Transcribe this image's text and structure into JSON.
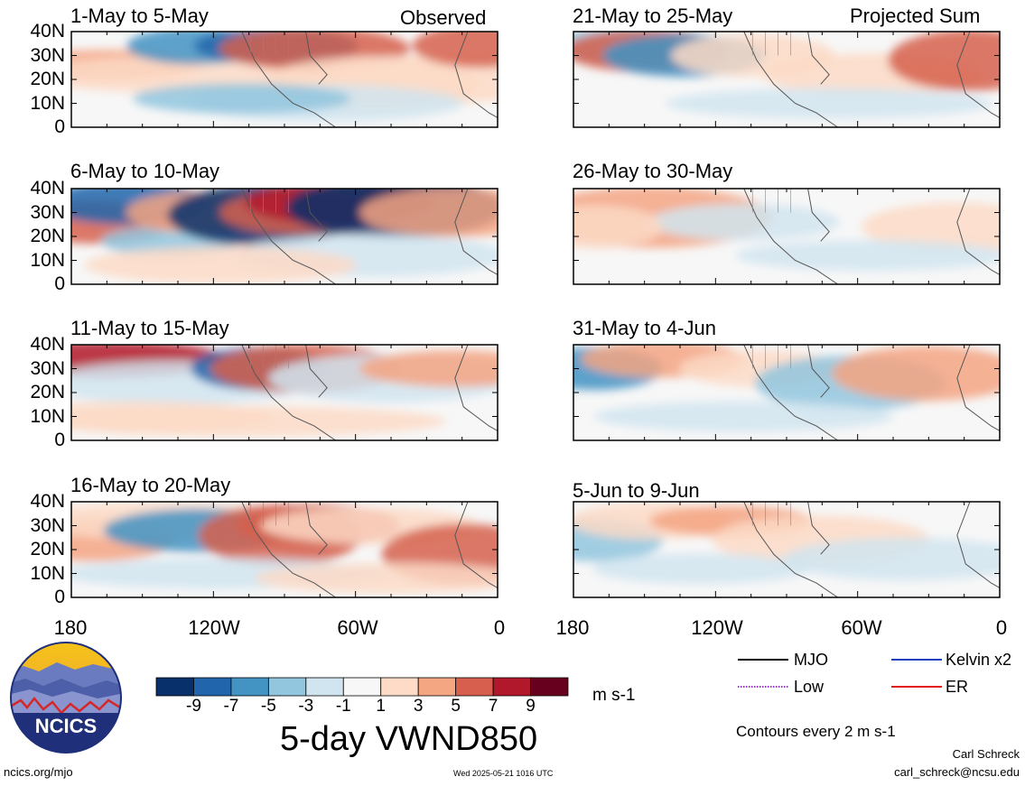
{
  "observed_label": "Observed",
  "projected_label": "Projected Sum",
  "panels_left": [
    {
      "title": "1-May to 5-May"
    },
    {
      "title": "6-May to 10-May"
    },
    {
      "title": "11-May to 15-May"
    },
    {
      "title": "16-May to 20-May"
    }
  ],
  "panels_right": [
    {
      "title": "21-May to 25-May"
    },
    {
      "title": "26-May to 30-May"
    },
    {
      "title": "31-May to 4-Jun"
    },
    {
      "title": "5-Jun to 9-Jun"
    }
  ],
  "y_ticks": [
    "40N",
    "30N",
    "20N",
    "10N",
    "0"
  ],
  "x_ticks": [
    "180",
    "120W",
    "60W",
    "0"
  ],
  "colorbar": {
    "labels": [
      "-9",
      "-7",
      "-5",
      "-3",
      "-1",
      "1",
      "3",
      "5",
      "7",
      "9"
    ],
    "colors": [
      "#08306b",
      "#2166ac",
      "#4393c3",
      "#92c5de",
      "#d1e5f0",
      "#f7f7f7",
      "#fddbc7",
      "#f4a582",
      "#d6604d",
      "#b2182b",
      "#67001f"
    ],
    "units": "m s-1"
  },
  "main_title": "5-day VWND850",
  "legend": {
    "items": [
      {
        "label": "MJO",
        "color": "#000000",
        "style": "solid"
      },
      {
        "label": "Kelvin x2",
        "color": "#1f3fbf",
        "style": "solid"
      },
      {
        "label": "Low",
        "color": "#9933cc",
        "style": "dotted"
      },
      {
        "label": "ER",
        "color": "#e41a1c",
        "style": "solid"
      }
    ],
    "note": "Contours every 2 m s-1"
  },
  "logo_text": "NCICS",
  "footer": {
    "site": "ncics.org/mjo",
    "timestamp": "Wed 2025-05-21 1016 UTC",
    "author": "Carl Schreck",
    "email": "carl_schreck@ncsu.edu"
  }
}
